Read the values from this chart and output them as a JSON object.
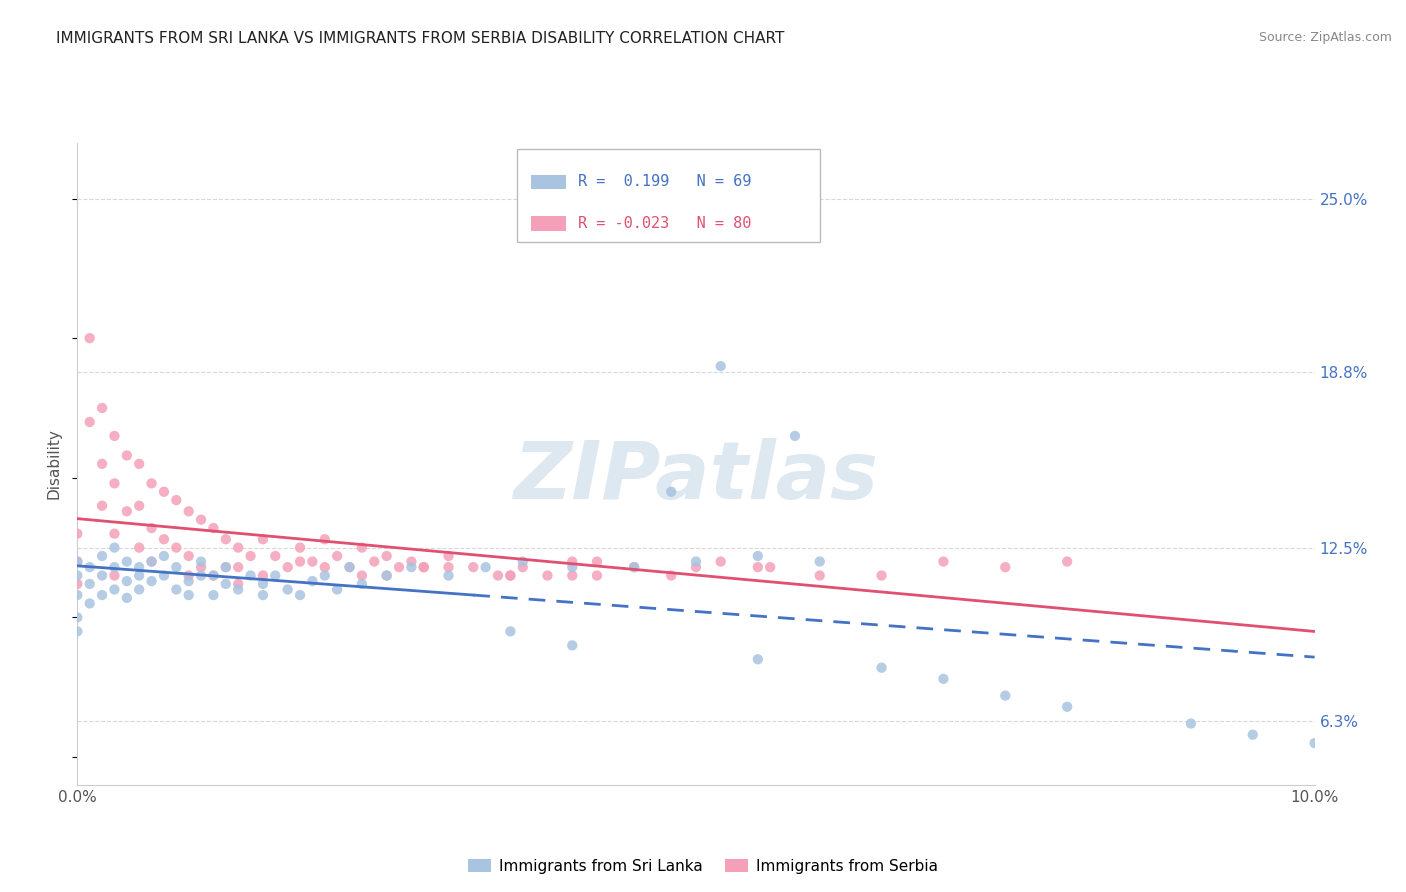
{
  "title": "IMMIGRANTS FROM SRI LANKA VS IMMIGRANTS FROM SERBIA DISABILITY CORRELATION CHART",
  "source": "Source: ZipAtlas.com",
  "ylabel": "Disability",
  "y_ticks_labels": [
    "6.3%",
    "12.5%",
    "18.8%",
    "25.0%"
  ],
  "y_tick_vals": [
    0.063,
    0.125,
    0.188,
    0.25
  ],
  "x_lim": [
    0.0,
    0.1
  ],
  "y_lim": [
    0.04,
    0.27
  ],
  "sri_lanka_color": "#a8c4e0",
  "serbia_color": "#f4a0b8",
  "sri_lanka_line_color": "#4472c4",
  "serbia_line_color": "#e05070",
  "R_sri_lanka": 0.199,
  "N_sri_lanka": 69,
  "R_serbia": -0.023,
  "N_serbia": 80,
  "watermark": "ZIPatlas",
  "background_color": "#ffffff",
  "grid_color": "#d8d8d8",
  "sri_lanka_scatter_x": [
    0.0,
    0.0,
    0.0,
    0.0,
    0.0,
    0.001,
    0.001,
    0.001,
    0.002,
    0.002,
    0.002,
    0.003,
    0.003,
    0.003,
    0.004,
    0.004,
    0.004,
    0.005,
    0.005,
    0.005,
    0.006,
    0.006,
    0.007,
    0.007,
    0.008,
    0.008,
    0.009,
    0.009,
    0.01,
    0.01,
    0.011,
    0.011,
    0.012,
    0.012,
    0.013,
    0.014,
    0.015,
    0.015,
    0.016,
    0.017,
    0.018,
    0.019,
    0.02,
    0.021,
    0.022,
    0.023,
    0.025,
    0.027,
    0.03,
    0.033,
    0.036,
    0.04,
    0.045,
    0.05,
    0.055,
    0.06,
    0.035,
    0.04,
    0.055,
    0.065,
    0.07,
    0.075,
    0.08,
    0.09,
    0.095,
    0.1,
    0.052,
    0.058,
    0.048
  ],
  "sri_lanka_scatter_y": [
    0.115,
    0.12,
    0.108,
    0.1,
    0.095,
    0.112,
    0.118,
    0.105,
    0.115,
    0.108,
    0.122,
    0.11,
    0.118,
    0.125,
    0.113,
    0.12,
    0.107,
    0.115,
    0.11,
    0.118,
    0.113,
    0.12,
    0.115,
    0.122,
    0.11,
    0.118,
    0.113,
    0.108,
    0.115,
    0.12,
    0.108,
    0.115,
    0.112,
    0.118,
    0.11,
    0.115,
    0.112,
    0.108,
    0.115,
    0.11,
    0.108,
    0.113,
    0.115,
    0.11,
    0.118,
    0.112,
    0.115,
    0.118,
    0.115,
    0.118,
    0.12,
    0.118,
    0.118,
    0.12,
    0.122,
    0.12,
    0.095,
    0.09,
    0.085,
    0.082,
    0.078,
    0.072,
    0.068,
    0.062,
    0.058,
    0.055,
    0.19,
    0.165,
    0.145
  ],
  "serbia_scatter_x": [
    0.0,
    0.0,
    0.0,
    0.001,
    0.001,
    0.002,
    0.002,
    0.002,
    0.003,
    0.003,
    0.003,
    0.004,
    0.004,
    0.005,
    0.005,
    0.005,
    0.006,
    0.006,
    0.007,
    0.007,
    0.008,
    0.008,
    0.009,
    0.009,
    0.01,
    0.01,
    0.011,
    0.011,
    0.012,
    0.012,
    0.013,
    0.013,
    0.014,
    0.015,
    0.015,
    0.016,
    0.017,
    0.018,
    0.019,
    0.02,
    0.021,
    0.022,
    0.023,
    0.024,
    0.025,
    0.026,
    0.027,
    0.028,
    0.03,
    0.032,
    0.034,
    0.036,
    0.038,
    0.04,
    0.042,
    0.045,
    0.048,
    0.052,
    0.056,
    0.025,
    0.03,
    0.003,
    0.006,
    0.009,
    0.013,
    0.018,
    0.023,
    0.028,
    0.035,
    0.042,
    0.05,
    0.06,
    0.07,
    0.075,
    0.08,
    0.055,
    0.065,
    0.035,
    0.04,
    0.02
  ],
  "serbia_scatter_y": [
    0.13,
    0.12,
    0.112,
    0.2,
    0.17,
    0.175,
    0.155,
    0.14,
    0.165,
    0.148,
    0.13,
    0.158,
    0.138,
    0.155,
    0.14,
    0.125,
    0.148,
    0.132,
    0.145,
    0.128,
    0.142,
    0.125,
    0.138,
    0.122,
    0.135,
    0.118,
    0.132,
    0.115,
    0.128,
    0.118,
    0.125,
    0.112,
    0.122,
    0.128,
    0.115,
    0.122,
    0.118,
    0.125,
    0.12,
    0.128,
    0.122,
    0.118,
    0.125,
    0.12,
    0.122,
    0.118,
    0.12,
    0.118,
    0.122,
    0.118,
    0.115,
    0.118,
    0.115,
    0.12,
    0.115,
    0.118,
    0.115,
    0.12,
    0.118,
    0.115,
    0.118,
    0.115,
    0.12,
    0.115,
    0.118,
    0.12,
    0.115,
    0.118,
    0.115,
    0.12,
    0.118,
    0.115,
    0.12,
    0.118,
    0.12,
    0.118,
    0.115,
    0.115,
    0.115,
    0.118
  ]
}
